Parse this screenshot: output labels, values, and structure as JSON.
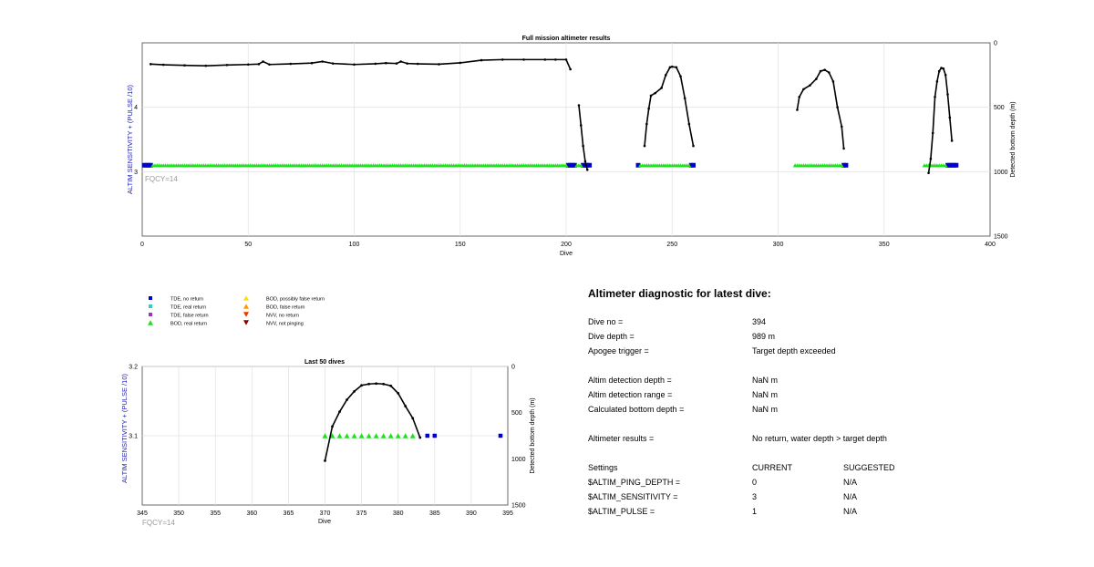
{
  "chart_data": [
    {
      "type": "scatter",
      "title": "Full mission altimeter results",
      "xlabel": "Dive",
      "ylabel_left": "ALTIM SENSITIVITY + (PULSE /10)",
      "ylabel_right": "Detected bottom depth (m)",
      "xlim": [
        0,
        400
      ],
      "ylim_left": [
        2,
        5
      ],
      "ylim_right": [
        0,
        1500
      ],
      "right_axis_reversed": true,
      "grid": true,
      "x_ticks": [
        "0",
        "50",
        "100",
        "150",
        "200",
        "250",
        "300",
        "350",
        "400"
      ],
      "y_left_ticks": [
        "3",
        "4"
      ],
      "y_right_ticks": [
        "0",
        "500",
        "1000",
        "1500"
      ],
      "annotation": "FQCY=14",
      "setting_level": 3.1,
      "series": [
        {
          "name": "TDE, no return",
          "marker": "square",
          "color": "#0000cc",
          "x": [
            1,
            2,
            3,
            4,
            201,
            202,
            203,
            204,
            208,
            209,
            210,
            211,
            234,
            259,
            260,
            331,
            332,
            380,
            381,
            382,
            383,
            384
          ]
        },
        {
          "name": "BOD, real return",
          "marker": "triangle",
          "color": "#22dd22",
          "x_ranges": [
            [
              5,
              200
            ],
            [
              205,
              207
            ],
            [
              235,
              258
            ],
            [
              308,
              330
            ],
            [
              369,
              379
            ]
          ]
        },
        {
          "name": "Detected bottom depth",
          "marker": "dot-line",
          "color": "#000000",
          "segments": [
            {
              "x": [
                4,
                10,
                20,
                30,
                40,
                50,
                55,
                57,
                60,
                70,
                80,
                85,
                90,
                100,
                110,
                115,
                120,
                122,
                125,
                130,
                140,
                150,
                160,
                170,
                180,
                190,
                195,
                200,
                202
              ],
              "depth": [
                165,
                170,
                175,
                178,
                172,
                168,
                165,
                145,
                168,
                163,
                157,
                145,
                160,
                168,
                162,
                157,
                160,
                145,
                160,
                163,
                166,
                155,
                135,
                130,
                130,
                130,
                130,
                130,
                205
              ]
            },
            {
              "x": [
                206,
                207,
                208,
                209,
                210
              ],
              "depth": [
                485,
                640,
                800,
                920,
                985
              ]
            },
            {
              "x": [
                237,
                238,
                239,
                240,
                242,
                245,
                247,
                249,
                250,
                252,
                254,
                256,
                258,
                260
              ],
              "depth": [
                800,
                630,
                510,
                410,
                390,
                350,
                250,
                190,
                185,
                190,
                260,
                430,
                630,
                800
              ]
            },
            {
              "x": [
                309,
                310,
                312,
                315,
                318,
                320,
                322,
                324,
                326,
                328,
                330,
                331
              ],
              "depth": [
                520,
                420,
                360,
                330,
                280,
                220,
                210,
                230,
                300,
                500,
                650,
                820
              ]
            },
            {
              "x": [
                371,
                372,
                373,
                374,
                375,
                376,
                377,
                378,
                379,
                380,
                381,
                382
              ],
              "depth": [
                1010,
                900,
                700,
                420,
                300,
                220,
                195,
                200,
                250,
                400,
                580,
                760
              ]
            }
          ]
        }
      ]
    },
    {
      "type": "scatter",
      "title": "Last 50 dives",
      "xlabel": "Dive",
      "ylabel_left": "ALTIM SENSITIVITY + (PULSE /10)",
      "ylabel_right": "Detected bottom depth (m)",
      "xlim": [
        345,
        395
      ],
      "ylim_left": [
        3.0,
        3.2
      ],
      "ylim_right": [
        0,
        1500
      ],
      "right_axis_reversed": true,
      "grid": true,
      "x_ticks": [
        "345",
        "350",
        "355",
        "360",
        "365",
        "370",
        "375",
        "380",
        "385",
        "390",
        "395"
      ],
      "y_left_ticks": [
        "3.1",
        "3.2"
      ],
      "y_right_ticks": [
        "0",
        "500",
        "1000",
        "1500"
      ],
      "annotation": "FQCY=14",
      "series": [
        {
          "name": "TDE, no return",
          "marker": "square",
          "color": "#0000cc",
          "x": [
            384,
            385,
            394
          ],
          "y": [
            3.1,
            3.1,
            3.1
          ]
        },
        {
          "name": "BOD, real return",
          "marker": "triangle",
          "color": "#22dd22",
          "x": [
            370,
            371,
            372,
            373,
            374,
            375,
            376,
            377,
            378,
            379,
            380,
            381,
            382
          ],
          "y": [
            3.1,
            3.1,
            3.1,
            3.1,
            3.1,
            3.1,
            3.1,
            3.1,
            3.1,
            3.1,
            3.1,
            3.1,
            3.1
          ]
        },
        {
          "name": "Detected bottom depth",
          "marker": "dot-line",
          "color": "#000000",
          "x": [
            370,
            371,
            372,
            373,
            374,
            375,
            376,
            377,
            378,
            379,
            380,
            381,
            382,
            383
          ],
          "depth": [
            1020,
            650,
            490,
            360,
            270,
            205,
            190,
            185,
            190,
            210,
            290,
            430,
            560,
            770
          ]
        }
      ]
    }
  ],
  "legend": {
    "col1": [
      {
        "label": "TDE, no return",
        "marker": "square",
        "color": "#0000cc"
      },
      {
        "label": "TDE, real return",
        "marker": "square",
        "color": "#33cccc"
      },
      {
        "label": "TDE, false return",
        "marker": "square",
        "color": "#9933cc"
      },
      {
        "label": "BOD, real return",
        "marker": "triangle",
        "color": "#22dd22"
      }
    ],
    "col2": [
      {
        "label": "BOD, possibly false return",
        "marker": "triangle",
        "color": "#ffdd00"
      },
      {
        "label": "BOD, false return",
        "marker": "triangle",
        "color": "#ff9900"
      },
      {
        "label": "NVV, no return",
        "marker": "triangle-down",
        "color": "#ee3300"
      },
      {
        "label": "NVV, not pinging",
        "marker": "triangle-down",
        "color": "#880000"
      }
    ]
  },
  "diagnostic": {
    "title": "Altimeter diagnostic for latest dive:",
    "dive_no_label": "Dive no =",
    "dive_no": "394",
    "dive_depth_label": "Dive depth =",
    "dive_depth": "989 m",
    "apogee_label": "Apogee trigger =",
    "apogee": "Target depth exceeded",
    "det_depth_label": "Altim detection depth =",
    "det_depth": "NaN m",
    "det_range_label": "Altim detection range =",
    "det_range": "NaN m",
    "calc_depth_label": "Calculated bottom depth =",
    "calc_depth": "NaN m",
    "results_label": "Altimeter results =",
    "results": "No return, water depth > target depth",
    "settings_label": "Settings",
    "current_label": "CURRENT",
    "suggested_label": "SUGGESTED",
    "ping_label": "$ALTIM_PING_DEPTH =",
    "ping_current": "0",
    "ping_suggested": "N/A",
    "sens_label": "$ALTIM_SENSITIVITY =",
    "sens_current": "3",
    "sens_suggested": "N/A",
    "pulse_label": "$ALTIM_PULSE =",
    "pulse_current": "1",
    "pulse_suggested": "N/A"
  }
}
